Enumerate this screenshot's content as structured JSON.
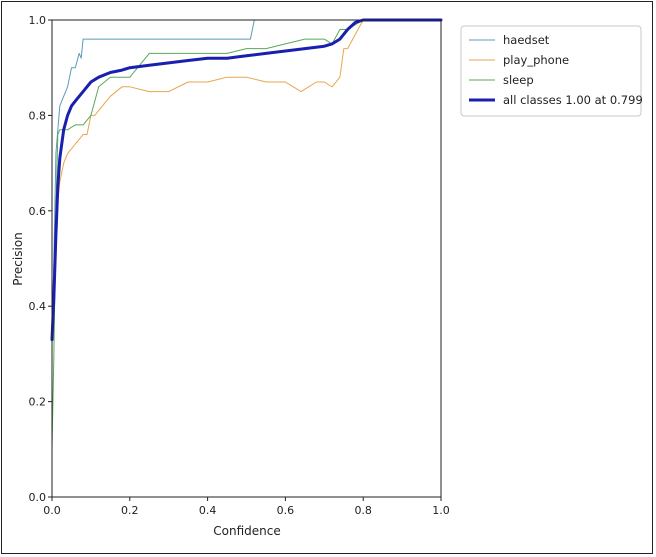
{
  "chart_data": {
    "type": "line",
    "title": "",
    "xlabel": "Confidence",
    "ylabel": "Precision",
    "xlim": [
      0.0,
      1.0
    ],
    "ylim": [
      0.0,
      1.0
    ],
    "x_ticks": [
      "0.0",
      "0.2",
      "0.4",
      "0.6",
      "0.8",
      "1.0"
    ],
    "y_ticks": [
      "0.0",
      "0.2",
      "0.4",
      "0.6",
      "0.8",
      "1.0"
    ],
    "grid": false,
    "legend_position": "top-right",
    "series": [
      {
        "name": "haedset",
        "color": "#5b9bb8",
        "width": 1,
        "x": [
          0.0,
          0.005,
          0.01,
          0.02,
          0.03,
          0.04,
          0.05,
          0.06,
          0.07,
          0.075,
          0.08,
          0.1,
          0.15,
          0.2,
          0.3,
          0.4,
          0.5,
          0.51,
          0.52,
          0.6,
          0.7,
          0.75,
          0.76,
          0.8,
          0.9,
          1.0
        ],
        "y": [
          0.33,
          0.5,
          0.72,
          0.82,
          0.84,
          0.86,
          0.9,
          0.9,
          0.93,
          0.92,
          0.96,
          0.96,
          0.96,
          0.96,
          0.96,
          0.96,
          0.96,
          0.96,
          1.0,
          1.0,
          1.0,
          1.0,
          1.0,
          1.0,
          1.0,
          1.0
        ]
      },
      {
        "name": "play_phone",
        "color": "#e8a54d",
        "width": 1,
        "x": [
          0.0,
          0.005,
          0.01,
          0.02,
          0.03,
          0.04,
          0.05,
          0.06,
          0.07,
          0.08,
          0.09,
          0.1,
          0.11,
          0.12,
          0.15,
          0.18,
          0.2,
          0.25,
          0.3,
          0.35,
          0.4,
          0.45,
          0.5,
          0.55,
          0.6,
          0.62,
          0.64,
          0.66,
          0.68,
          0.7,
          0.72,
          0.74,
          0.75,
          0.76,
          0.78,
          0.8,
          1.0
        ],
        "y": [
          0.32,
          0.48,
          0.58,
          0.66,
          0.7,
          0.72,
          0.73,
          0.74,
          0.75,
          0.76,
          0.76,
          0.8,
          0.8,
          0.81,
          0.84,
          0.86,
          0.86,
          0.85,
          0.85,
          0.87,
          0.87,
          0.88,
          0.88,
          0.87,
          0.87,
          0.86,
          0.85,
          0.86,
          0.87,
          0.87,
          0.86,
          0.88,
          0.94,
          0.94,
          0.97,
          1.0,
          1.0
        ]
      },
      {
        "name": "sleep",
        "color": "#5aa85a",
        "width": 1,
        "x": [
          0.0,
          0.005,
          0.01,
          0.015,
          0.02,
          0.04,
          0.06,
          0.08,
          0.1,
          0.12,
          0.15,
          0.18,
          0.2,
          0.25,
          0.3,
          0.35,
          0.4,
          0.45,
          0.5,
          0.55,
          0.6,
          0.65,
          0.7,
          0.72,
          0.74,
          0.76,
          0.8,
          1.0
        ],
        "y": [
          0.1,
          0.3,
          0.6,
          0.76,
          0.77,
          0.77,
          0.78,
          0.78,
          0.8,
          0.86,
          0.88,
          0.88,
          0.88,
          0.93,
          0.93,
          0.93,
          0.93,
          0.93,
          0.94,
          0.94,
          0.95,
          0.96,
          0.96,
          0.95,
          0.98,
          0.98,
          1.0,
          1.0
        ]
      },
      {
        "name": "all classes 1.00 at 0.799",
        "color": "#1a1fb0",
        "width": 3,
        "x": [
          0.0,
          0.005,
          0.01,
          0.015,
          0.02,
          0.03,
          0.04,
          0.05,
          0.06,
          0.08,
          0.1,
          0.12,
          0.15,
          0.18,
          0.2,
          0.25,
          0.3,
          0.35,
          0.4,
          0.45,
          0.5,
          0.55,
          0.6,
          0.65,
          0.7,
          0.72,
          0.74,
          0.76,
          0.78,
          0.8,
          0.9,
          1.0
        ],
        "y": [
          0.33,
          0.42,
          0.55,
          0.65,
          0.71,
          0.77,
          0.8,
          0.82,
          0.83,
          0.85,
          0.87,
          0.88,
          0.89,
          0.895,
          0.9,
          0.905,
          0.91,
          0.915,
          0.92,
          0.92,
          0.925,
          0.93,
          0.935,
          0.94,
          0.945,
          0.95,
          0.96,
          0.98,
          0.995,
          1.0,
          1.0,
          1.0
        ]
      }
    ]
  }
}
